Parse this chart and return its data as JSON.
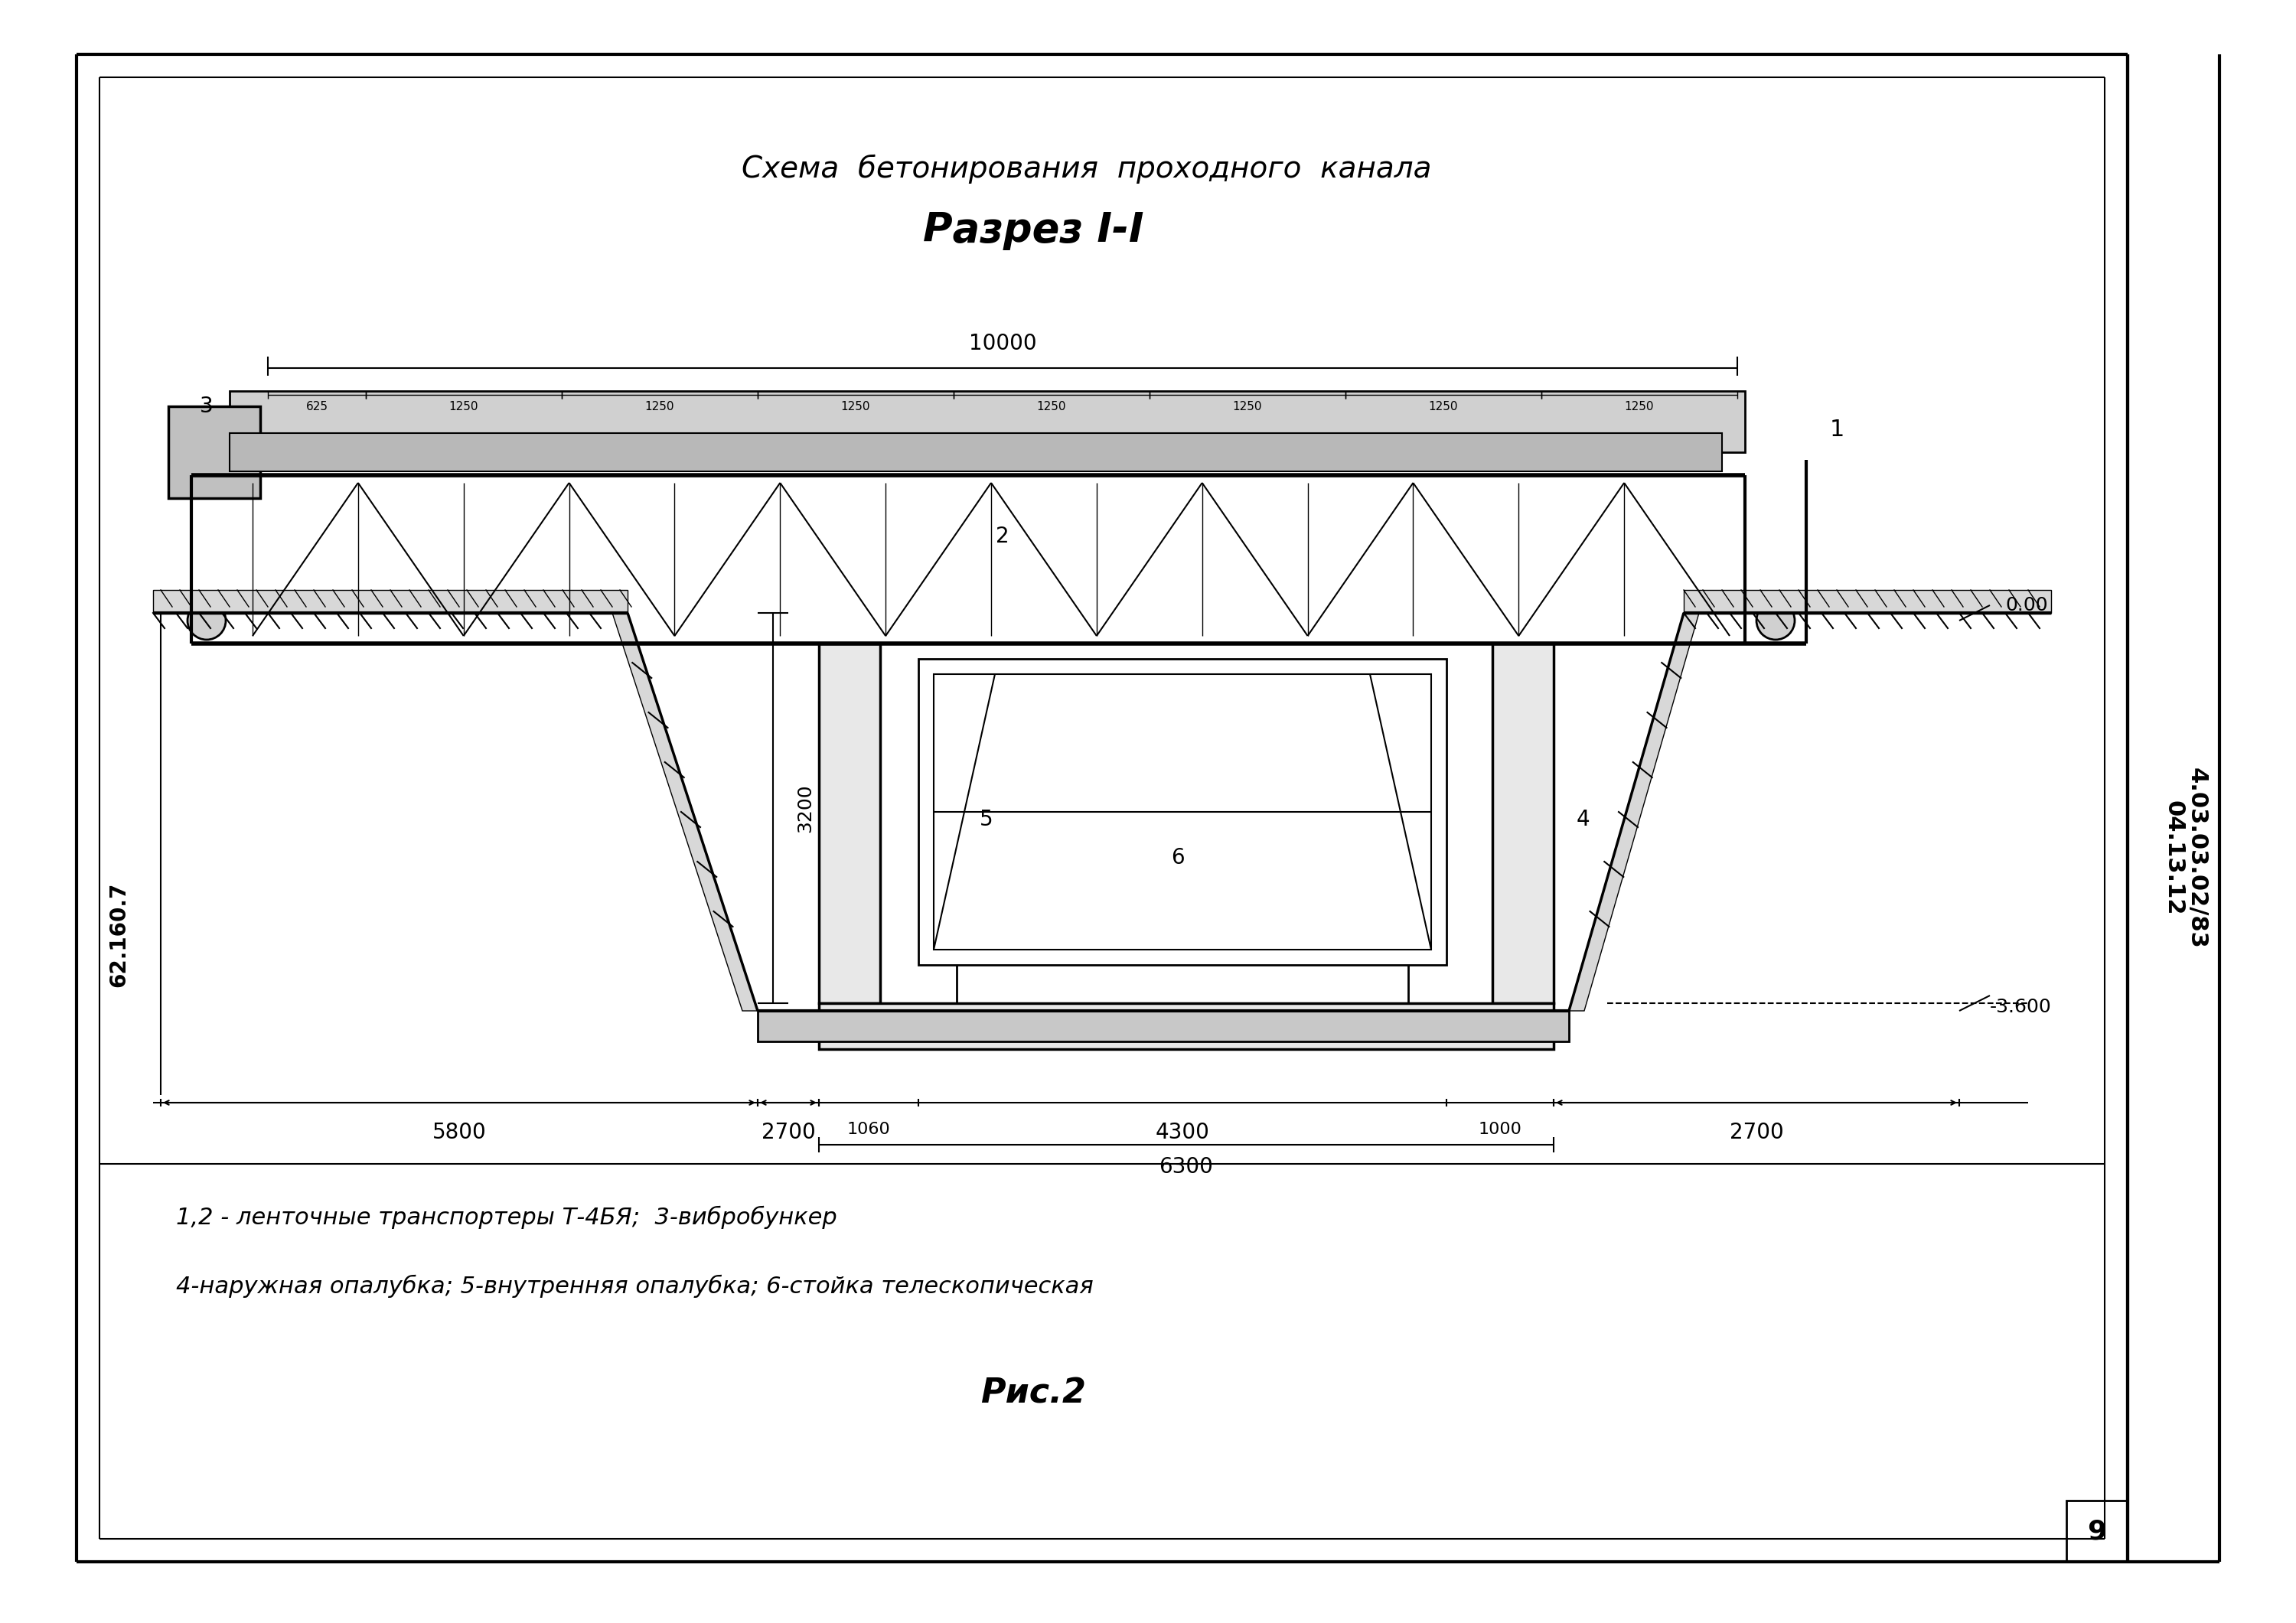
{
  "bg_color": "#ffffff",
  "border_color": "#000000",
  "title1": "Схема  бетонирования  проходного  канала",
  "title2": "Разрез I-I",
  "legend_line1": "1,2 - ленточные транспортеры Т-4БЯ;  3-вибробункер",
  "legend_line2": "4-наружная опалубка; 5-внутренняя опалубка; 6-стойка телескопическая",
  "fig_label": "Рис.2",
  "page_num": "9",
  "side_text1": "04.13.12",
  "side_text2": "4.03.03.02/83",
  "left_label": "62.160.7",
  "dim_10000": "10000",
  "dim_625": "625",
  "dim_1250_list": [
    "1250",
    "1250",
    "1250",
    "1250",
    "1250",
    "1250",
    "1250"
  ],
  "dim_5800": "5800",
  "dim_2700_left": "2700",
  "dim_6300": "6300",
  "dim_2700_right": "2700",
  "dim_4300": "4300",
  "dim_1060": "1060",
  "dim_1000": "1000",
  "dim_3200": "3200",
  "dim_0_00": "0.00",
  "dim_m3600": "-3.600"
}
